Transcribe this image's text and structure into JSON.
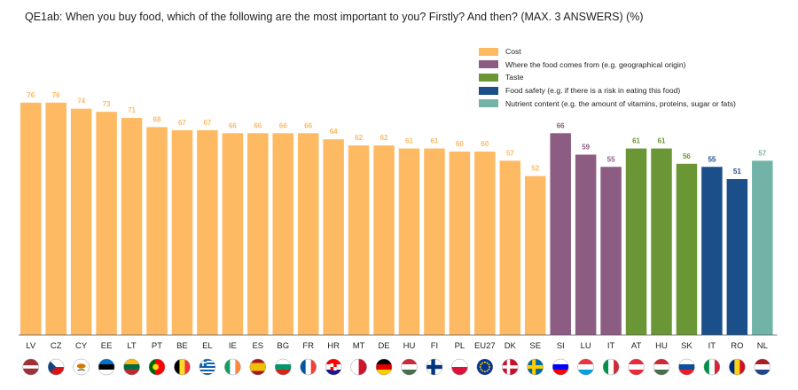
{
  "title": "QE1ab: When you buy food, which of the following are the most important to you? Firstly? And then? (MAX. 3 ANSWERS) (%)",
  "colors": {
    "cost": "#FDBA63",
    "origin": "#8C5C83",
    "taste": "#6B9636",
    "safety": "#1B4F8A",
    "nutrient": "#72B3A7"
  },
  "legend": [
    {
      "key": "cost",
      "label": "Cost"
    },
    {
      "key": "origin",
      "label": "Where the food comes from (e.g. geographical origin)"
    },
    {
      "key": "taste",
      "label": "Taste"
    },
    {
      "key": "safety",
      "label": "Food safety (e.g. if there is a risk in eating this food)"
    },
    {
      "key": "nutrient",
      "label": "Nutrient content (e.g. the amount of vitamins, proteins, sugar or fats)"
    }
  ],
  "chart_data": {
    "type": "bar",
    "ylim": [
      0,
      100
    ],
    "grid": false,
    "legend_position": "top-right",
    "categories": [
      "LV",
      "CZ",
      "CY",
      "EE",
      "LT",
      "PT",
      "BE",
      "EL",
      "IE",
      "ES",
      "BG",
      "FR",
      "HR",
      "MT",
      "DE",
      "HU",
      "FI",
      "PL",
      "EU27",
      "DK",
      "SE",
      "SI",
      "LU",
      "IT",
      "AT",
      "HU",
      "SK",
      "IT",
      "RO",
      "NL"
    ],
    "values": [
      76,
      76,
      74,
      73,
      71,
      68,
      67,
      67,
      66,
      66,
      66,
      66,
      64,
      62,
      62,
      61,
      61,
      60,
      60,
      57,
      52,
      66,
      59,
      55,
      61,
      61,
      56,
      55,
      51,
      57
    ],
    "series_keys": [
      "cost",
      "cost",
      "cost",
      "cost",
      "cost",
      "cost",
      "cost",
      "cost",
      "cost",
      "cost",
      "cost",
      "cost",
      "cost",
      "cost",
      "cost",
      "cost",
      "cost",
      "cost",
      "cost",
      "cost",
      "cost",
      "origin",
      "origin",
      "origin",
      "taste",
      "taste",
      "taste",
      "safety",
      "safety",
      "nutrient"
    ],
    "flags": [
      "flag-lv",
      "flag-cz",
      "flag-cy",
      "flag-ee",
      "flag-lt",
      "flag-pt",
      "flag-be",
      "flag-el",
      "flag-ie",
      "flag-es",
      "flag-bg",
      "flag-fr",
      "flag-hr",
      "flag-mt",
      "flag-de",
      "flag-hu",
      "flag-fi",
      "flag-pl",
      "flag-eu",
      "flag-dk",
      "flag-se",
      "flag-si",
      "flag-lu",
      "flag-it",
      "flag-at",
      "flag-hu",
      "flag-sk",
      "flag-it",
      "flag-ro",
      "flag-nl"
    ]
  }
}
